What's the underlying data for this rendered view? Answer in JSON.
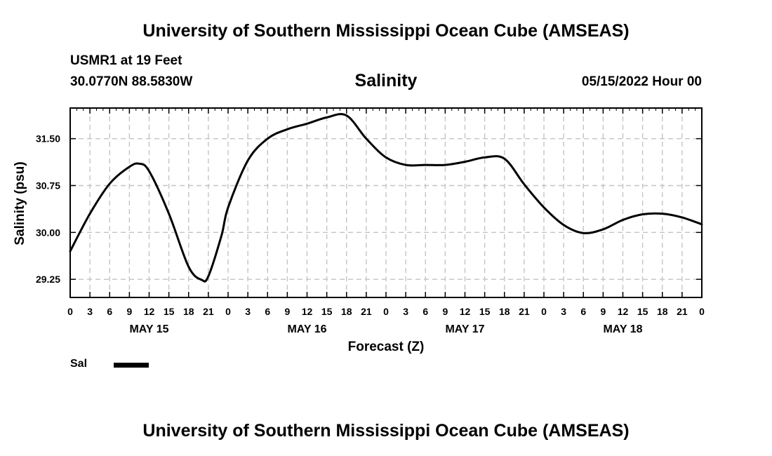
{
  "header": {
    "top_title": "University of Southern Mississippi Ocean Cube (AMSEAS)",
    "station": "USMR1 at 19 Feet",
    "coords": "30.0770N  88.5830W",
    "datetime": "05/15/2022 Hour 00",
    "bottom_title": "University of Southern Mississippi Ocean Cube (AMSEAS)"
  },
  "chart_data": {
    "type": "line",
    "title": "Salinity",
    "xlabel": "Forecast (Z)",
    "ylabel": "Salinity (psu)",
    "grid": true,
    "xlim": [
      0,
      96
    ],
    "ylim": [
      28.96,
      31.99
    ],
    "x_ticks": [
      0,
      3,
      6,
      9,
      12,
      15,
      18,
      21,
      24,
      27,
      30,
      33,
      36,
      39,
      42,
      45,
      48,
      51,
      54,
      57,
      60,
      63,
      66,
      69,
      72,
      75,
      78,
      81,
      84,
      87,
      90,
      93,
      96
    ],
    "x_tick_labels": [
      "0",
      "3",
      "6",
      "9",
      "12",
      "15",
      "18",
      "21",
      "0",
      "3",
      "6",
      "9",
      "12",
      "15",
      "18",
      "21",
      "0",
      "3",
      "6",
      "9",
      "12",
      "15",
      "18",
      "21",
      "0",
      "3",
      "6",
      "9",
      "12",
      "15",
      "18",
      "21",
      "0"
    ],
    "day_labels": [
      {
        "hour": 12,
        "label": "MAY 15"
      },
      {
        "hour": 36,
        "label": "MAY 16"
      },
      {
        "hour": 60,
        "label": "MAY 17"
      },
      {
        "hour": 84,
        "label": "MAY 18"
      }
    ],
    "y_ticks": [
      29.25,
      30.0,
      30.75,
      31.5
    ],
    "y_tick_labels": [
      "29.25",
      "30.00",
      "30.75",
      "31.50"
    ],
    "legend": [
      {
        "name": "Sal",
        "color": "#000000"
      }
    ],
    "series": [
      {
        "name": "Sal",
        "x": [
          0,
          3,
          6,
          9,
          10.5,
          12,
          15,
          18,
          20,
          21,
          23,
          24,
          27,
          30,
          33,
          36,
          39,
          42,
          45,
          48,
          51,
          54,
          57,
          60,
          63,
          66,
          69,
          72,
          75,
          78,
          81,
          84,
          87,
          90,
          93,
          96
        ],
        "values": [
          29.7,
          30.3,
          30.78,
          31.05,
          31.1,
          30.98,
          30.3,
          29.45,
          29.24,
          29.3,
          29.95,
          30.4,
          31.15,
          31.5,
          31.65,
          31.74,
          31.84,
          31.87,
          31.5,
          31.2,
          31.08,
          31.08,
          31.08,
          31.13,
          31.2,
          31.18,
          30.77,
          30.4,
          30.12,
          29.99,
          30.05,
          30.2,
          30.29,
          30.3,
          30.24,
          30.13
        ]
      }
    ]
  }
}
